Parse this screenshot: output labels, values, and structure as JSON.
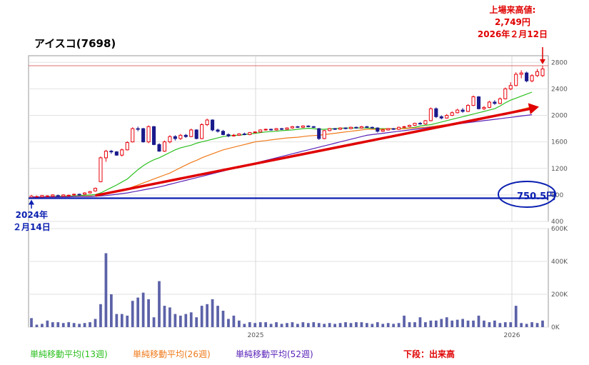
{
  "title": "アイスコ(7698)",
  "annotations": {
    "ath_line1": "上場来高値:",
    "ath_line2": "2,749円",
    "ath_line3": "2026年２月12日",
    "start_line1": "2024年",
    "start_line2": "２月14日",
    "base_price": "750.5円"
  },
  "legend": {
    "ma13": "単純移動平均(13週)",
    "ma26": "単純移動平均(26週)",
    "ma52": "単純移動平均(52週)",
    "bottom_label": "下段：出来高"
  },
  "colors": {
    "up": "#e8000b",
    "down": "#1a1a8c",
    "ma13": "#2cc01f",
    "ma26": "#f07a1a",
    "ma52": "#5a22b8",
    "arrow": "#e00000",
    "baseline": "#0a1fb0",
    "volume": "#5c62a8",
    "ath_line": "#e07070"
  },
  "chart_data": [
    {
      "type": "candlestick",
      "title": "アイスコ(7698)",
      "x_ticks": [
        "2025",
        "2026"
      ],
      "y_ticks": [
        400,
        800,
        1200,
        1600,
        2000,
        2400,
        2800
      ],
      "ylim": [
        400,
        2900
      ],
      "reference_lines": {
        "all_time_high": 2749,
        "listing_base": 750.5
      },
      "weeks": [
        {
          "o": 760,
          "c": 780,
          "h": 800,
          "l": 740
        },
        {
          "o": 770,
          "c": 775,
          "h": 790,
          "l": 750
        },
        {
          "o": 770,
          "c": 790,
          "h": 800,
          "l": 760
        },
        {
          "o": 780,
          "c": 785,
          "h": 795,
          "l": 770
        },
        {
          "o": 780,
          "c": 800,
          "h": 810,
          "l": 770
        },
        {
          "o": 790,
          "c": 785,
          "h": 805,
          "l": 775
        },
        {
          "o": 780,
          "c": 800,
          "h": 810,
          "l": 775
        },
        {
          "o": 790,
          "c": 795,
          "h": 805,
          "l": 780
        },
        {
          "o": 800,
          "c": 810,
          "h": 820,
          "l": 790
        },
        {
          "o": 810,
          "c": 800,
          "h": 820,
          "l": 790
        },
        {
          "o": 810,
          "c": 830,
          "h": 840,
          "l": 800
        },
        {
          "o": 830,
          "c": 850,
          "h": 860,
          "l": 820
        },
        {
          "o": 860,
          "c": 900,
          "h": 910,
          "l": 850
        },
        {
          "o": 1000,
          "c": 1360,
          "h": 1380,
          "l": 990
        },
        {
          "o": 1360,
          "c": 1460,
          "h": 1480,
          "l": 1300
        },
        {
          "o": 1460,
          "c": 1450,
          "h": 1480,
          "l": 1420
        },
        {
          "o": 1450,
          "c": 1400,
          "h": 1460,
          "l": 1390
        },
        {
          "o": 1400,
          "c": 1480,
          "h": 1500,
          "l": 1380
        },
        {
          "o": 1480,
          "c": 1590,
          "h": 1610,
          "l": 1470
        },
        {
          "o": 1600,
          "c": 1800,
          "h": 1820,
          "l": 1590
        },
        {
          "o": 1800,
          "c": 1790,
          "h": 1830,
          "l": 1760
        },
        {
          "o": 1800,
          "c": 1600,
          "h": 1810,
          "l": 1590
        },
        {
          "o": 1600,
          "c": 1830,
          "h": 1850,
          "l": 1580
        },
        {
          "o": 1830,
          "c": 1560,
          "h": 1840,
          "l": 1550
        },
        {
          "o": 1560,
          "c": 1460,
          "h": 1580,
          "l": 1450
        },
        {
          "o": 1460,
          "c": 1600,
          "h": 1620,
          "l": 1450
        },
        {
          "o": 1600,
          "c": 1680,
          "h": 1700,
          "l": 1580
        },
        {
          "o": 1680,
          "c": 1650,
          "h": 1700,
          "l": 1620
        },
        {
          "o": 1650,
          "c": 1700,
          "h": 1720,
          "l": 1630
        },
        {
          "o": 1700,
          "c": 1680,
          "h": 1720,
          "l": 1660
        },
        {
          "o": 1680,
          "c": 1780,
          "h": 1800,
          "l": 1670
        },
        {
          "o": 1780,
          "c": 1650,
          "h": 1790,
          "l": 1640
        },
        {
          "o": 1650,
          "c": 1860,
          "h": 1880,
          "l": 1640
        },
        {
          "o": 1860,
          "c": 1930,
          "h": 1950,
          "l": 1840
        },
        {
          "o": 1930,
          "c": 1780,
          "h": 1940,
          "l": 1760
        },
        {
          "o": 1780,
          "c": 1760,
          "h": 1800,
          "l": 1740
        },
        {
          "o": 1760,
          "c": 1710,
          "h": 1780,
          "l": 1700
        },
        {
          "o": 1710,
          "c": 1690,
          "h": 1730,
          "l": 1670
        },
        {
          "o": 1690,
          "c": 1700,
          "h": 1720,
          "l": 1680
        },
        {
          "o": 1700,
          "c": 1720,
          "h": 1730,
          "l": 1690
        },
        {
          "o": 1720,
          "c": 1710,
          "h": 1740,
          "l": 1700
        },
        {
          "o": 1710,
          "c": 1740,
          "h": 1750,
          "l": 1700
        },
        {
          "o": 1740,
          "c": 1750,
          "h": 1760,
          "l": 1730
        },
        {
          "o": 1750,
          "c": 1780,
          "h": 1790,
          "l": 1740
        },
        {
          "o": 1780,
          "c": 1790,
          "h": 1800,
          "l": 1770
        },
        {
          "o": 1790,
          "c": 1780,
          "h": 1800,
          "l": 1770
        },
        {
          "o": 1780,
          "c": 1800,
          "h": 1810,
          "l": 1770
        },
        {
          "o": 1800,
          "c": 1790,
          "h": 1810,
          "l": 1780
        },
        {
          "o": 1790,
          "c": 1810,
          "h": 1820,
          "l": 1780
        },
        {
          "o": 1810,
          "c": 1830,
          "h": 1840,
          "l": 1800
        },
        {
          "o": 1830,
          "c": 1820,
          "h": 1840,
          "l": 1810
        },
        {
          "o": 1820,
          "c": 1840,
          "h": 1850,
          "l": 1810
        },
        {
          "o": 1840,
          "c": 1830,
          "h": 1850,
          "l": 1820
        },
        {
          "o": 1830,
          "c": 1820,
          "h": 1840,
          "l": 1810
        },
        {
          "o": 1800,
          "c": 1650,
          "h": 1810,
          "l": 1630
        },
        {
          "o": 1650,
          "c": 1770,
          "h": 1780,
          "l": 1640
        },
        {
          "o": 1770,
          "c": 1800,
          "h": 1810,
          "l": 1760
        },
        {
          "o": 1800,
          "c": 1790,
          "h": 1810,
          "l": 1780
        },
        {
          "o": 1790,
          "c": 1810,
          "h": 1820,
          "l": 1780
        },
        {
          "o": 1810,
          "c": 1800,
          "h": 1820,
          "l": 1790
        },
        {
          "o": 1800,
          "c": 1820,
          "h": 1830,
          "l": 1790
        },
        {
          "o": 1820,
          "c": 1810,
          "h": 1830,
          "l": 1800
        },
        {
          "o": 1810,
          "c": 1830,
          "h": 1840,
          "l": 1800
        },
        {
          "o": 1830,
          "c": 1820,
          "h": 1840,
          "l": 1810
        },
        {
          "o": 1820,
          "c": 1810,
          "h": 1830,
          "l": 1800
        },
        {
          "o": 1810,
          "c": 1760,
          "h": 1820,
          "l": 1740
        },
        {
          "o": 1760,
          "c": 1780,
          "h": 1800,
          "l": 1750
        },
        {
          "o": 1780,
          "c": 1800,
          "h": 1810,
          "l": 1770
        },
        {
          "o": 1800,
          "c": 1790,
          "h": 1810,
          "l": 1780
        },
        {
          "o": 1790,
          "c": 1820,
          "h": 1830,
          "l": 1780
        },
        {
          "o": 1820,
          "c": 1830,
          "h": 1840,
          "l": 1810
        },
        {
          "o": 1830,
          "c": 1850,
          "h": 1860,
          "l": 1820
        },
        {
          "o": 1850,
          "c": 1880,
          "h": 1890,
          "l": 1840
        },
        {
          "o": 1880,
          "c": 1870,
          "h": 1900,
          "l": 1860
        },
        {
          "o": 1870,
          "c": 1920,
          "h": 1930,
          "l": 1860
        },
        {
          "o": 1920,
          "c": 2100,
          "h": 2120,
          "l": 1910
        },
        {
          "o": 2100,
          "c": 1980,
          "h": 2120,
          "l": 1960
        },
        {
          "o": 1980,
          "c": 1960,
          "h": 2000,
          "l": 1940
        },
        {
          "o": 1960,
          "c": 2000,
          "h": 2020,
          "l": 1950
        },
        {
          "o": 2000,
          "c": 2040,
          "h": 2060,
          "l": 1990
        },
        {
          "o": 2040,
          "c": 2080,
          "h": 2100,
          "l": 2030
        },
        {
          "o": 2080,
          "c": 2060,
          "h": 2110,
          "l": 2040
        },
        {
          "o": 2060,
          "c": 2150,
          "h": 2170,
          "l": 2050
        },
        {
          "o": 2150,
          "c": 2280,
          "h": 2300,
          "l": 2140
        },
        {
          "o": 2280,
          "c": 2100,
          "h": 2290,
          "l": 2090
        },
        {
          "o": 2100,
          "c": 2120,
          "h": 2140,
          "l": 2080
        },
        {
          "o": 2120,
          "c": 2200,
          "h": 2220,
          "l": 2110
        },
        {
          "o": 2200,
          "c": 2180,
          "h": 2230,
          "l": 2160
        },
        {
          "o": 2180,
          "c": 2250,
          "h": 2270,
          "l": 2170
        },
        {
          "o": 2250,
          "c": 2400,
          "h": 2420,
          "l": 2240
        },
        {
          "o": 2400,
          "c": 2450,
          "h": 2500,
          "l": 2380
        },
        {
          "o": 2450,
          "c": 2620,
          "h": 2650,
          "l": 2440
        },
        {
          "o": 2620,
          "c": 2640,
          "h": 2680,
          "l": 2560
        },
        {
          "o": 2640,
          "c": 2520,
          "h": 2660,
          "l": 2500
        },
        {
          "o": 2520,
          "c": 2600,
          "h": 2620,
          "l": 2500
        },
        {
          "o": 2600,
          "c": 2660,
          "h": 2700,
          "l": 2580
        },
        {
          "o": 2600,
          "c": 2700,
          "h": 2749,
          "l": 2580
        }
      ]
    },
    {
      "type": "line",
      "series": [
        {
          "name": "単純移動平均(13週)",
          "values": [
            770,
            770,
            770,
            775,
            775,
            780,
            780,
            785,
            785,
            790,
            795,
            800,
            805,
            830,
            870,
            910,
            950,
            995,
            1040,
            1110,
            1180,
            1240,
            1290,
            1330,
            1360,
            1400,
            1440,
            1480,
            1510,
            1530,
            1550,
            1580,
            1600,
            1620,
            1640,
            1660,
            1680,
            1690,
            1700,
            1700,
            1710,
            1720,
            1730,
            1740,
            1750,
            1755,
            1760,
            1770,
            1775,
            1780,
            1790,
            1800,
            1805,
            1800,
            1790,
            1790,
            1795,
            1800,
            1805,
            1810,
            1810,
            1810,
            1810,
            1810,
            1805,
            1800,
            1800,
            1800,
            1800,
            1800,
            1805,
            1810,
            1820,
            1840,
            1850,
            1860,
            1880,
            1900,
            1920,
            1940,
            1960,
            1980,
            2000,
            2020,
            2040,
            2060,
            2080,
            2100,
            2140,
            2190,
            2230,
            2260,
            2290,
            2320,
            2350
          ]
        },
        {
          "name": "単純移動平均(26週)",
          "values": [
            770,
            770,
            770,
            770,
            770,
            770,
            775,
            775,
            775,
            780,
            780,
            785,
            785,
            795,
            810,
            830,
            850,
            870,
            890,
            920,
            950,
            980,
            1010,
            1040,
            1070,
            1100,
            1130,
            1170,
            1210,
            1250,
            1290,
            1320,
            1360,
            1390,
            1420,
            1450,
            1480,
            1500,
            1520,
            1540,
            1560,
            1580,
            1600,
            1610,
            1620,
            1630,
            1640,
            1650,
            1660,
            1665,
            1670,
            1680,
            1690,
            1695,
            1700,
            1710,
            1720,
            1730,
            1740,
            1750,
            1760,
            1770,
            1780,
            1790,
            1790,
            1790,
            1790,
            1795,
            1800,
            1800,
            1800,
            1805,
            1810,
            1815,
            1820,
            1830,
            1840,
            1850,
            1860,
            1870,
            1880,
            1890,
            1900,
            1910,
            1930,
            1950,
            1970,
            1990,
            2010,
            2030,
            2050,
            2070,
            2090,
            2110,
            2130
          ]
        },
        {
          "name": "単純移動平均(52週)",
          "values": [
            770,
            770,
            770,
            770,
            770,
            770,
            770,
            770,
            775,
            775,
            775,
            775,
            780,
            785,
            790,
            800,
            810,
            820,
            830,
            845,
            860,
            875,
            890,
            905,
            920,
            940,
            960,
            980,
            1000,
            1020,
            1040,
            1060,
            1080,
            1100,
            1120,
            1140,
            1160,
            1180,
            1200,
            1220,
            1240,
            1260,
            1280,
            1300,
            1320,
            1340,
            1360,
            1380,
            1400,
            1420,
            1440,
            1460,
            1480,
            1500,
            1520,
            1540,
            1560,
            1580,
            1600,
            1620,
            1640,
            1660,
            1680,
            1700,
            1710,
            1720,
            1730,
            1740,
            1750,
            1760,
            1770,
            1780,
            1790,
            1800,
            1810,
            1820,
            1830,
            1840,
            1850,
            1860,
            1870,
            1880,
            1890,
            1900,
            1910,
            1920,
            1930,
            1940,
            1950,
            1960,
            1970,
            1980,
            1990,
            2000,
            2010
          ]
        }
      ]
    },
    {
      "type": "bar",
      "title": "下段：出来高",
      "y_ticks": [
        "0K",
        "200K",
        "400K",
        "600K"
      ],
      "ylim": [
        0,
        600
      ],
      "values": [
        55,
        15,
        20,
        40,
        30,
        30,
        25,
        30,
        25,
        20,
        25,
        30,
        50,
        140,
        450,
        200,
        80,
        80,
        70,
        160,
        180,
        210,
        170,
        60,
        280,
        130,
        120,
        80,
        70,
        80,
        90,
        60,
        130,
        140,
        170,
        130,
        100,
        50,
        70,
        40,
        20,
        30,
        25,
        30,
        30,
        20,
        30,
        20,
        25,
        30,
        20,
        30,
        25,
        30,
        25,
        20,
        25,
        20,
        25,
        30,
        25,
        30,
        30,
        25,
        20,
        30,
        20,
        25,
        20,
        25,
        70,
        30,
        30,
        60,
        30,
        40,
        40,
        50,
        60,
        40,
        45,
        50,
        40,
        40,
        70,
        40,
        30,
        40,
        25,
        30,
        30,
        130,
        25,
        20,
        30,
        25,
        40,
        30,
        20,
        30
      ]
    }
  ]
}
